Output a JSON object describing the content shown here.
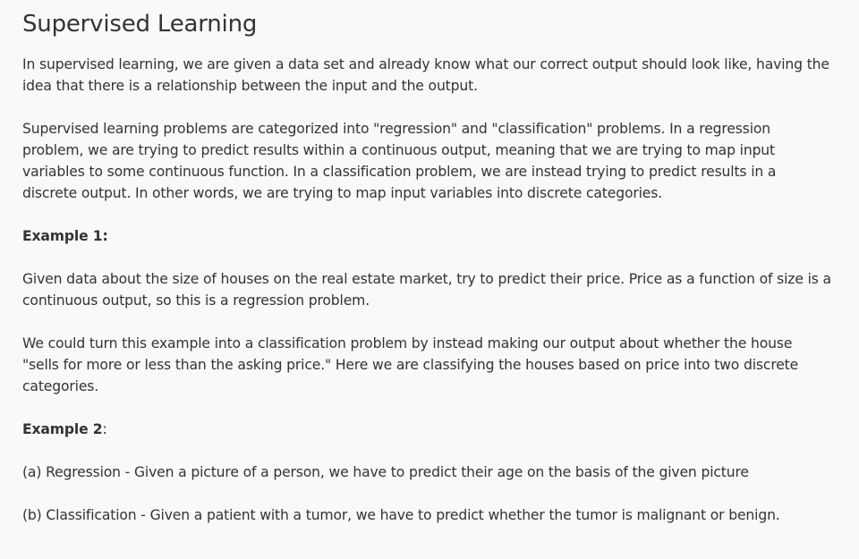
{
  "title": "Supervised Learning",
  "intro": "In supervised learning, we are given a data set and already know what our correct output should look like, having the idea that there is a relationship between the input and the output.",
  "categories": "Supervised learning problems are categorized into \"regression\" and \"classification\" problems. In a regression problem, we are trying to predict results within a continuous output, meaning that we are trying to map input variables to some continuous function. In a classification problem, we are instead trying to predict results in a discrete output. In other words, we are trying to map input variables into discrete categories.",
  "example1": {
    "heading": "Example 1:",
    "regression": "Given data about the size of houses on the real estate market, try to predict their price. Price as a function of size is a continuous output, so this is a regression problem.",
    "classification": "We could turn this example into a classification problem by instead making our output about whether the house \"sells for more or less than the asking price.\" Here we are classifying the houses based on price into two discrete categories."
  },
  "example2": {
    "heading": "Example 2",
    "heading_suffix": ":",
    "item_a": "(a) Regression - Given a picture of a person, we have to predict their age on the basis of the given picture",
    "item_b": "(b) Classification - Given a patient with a tumor, we have to predict whether the tumor is malignant or benign."
  }
}
